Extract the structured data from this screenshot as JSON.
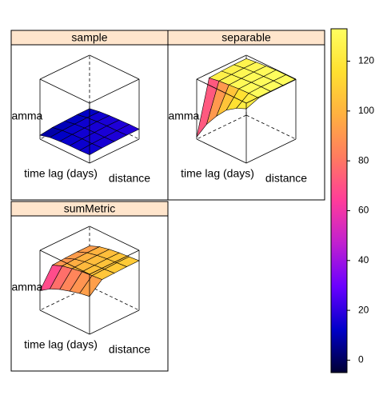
{
  "chart_data": {
    "type": "wireframe",
    "x_label": "distance",
    "y_label": "time lag (days)",
    "z_label": "gamma",
    "zlim": [
      -5,
      133
    ],
    "colorkey_ticks": [
      0,
      20,
      40,
      60,
      80,
      100,
      120
    ],
    "palette": [
      "#000033",
      "#0000c8",
      "#6a00ff",
      "#c020d0",
      "#ff3c9a",
      "#ff7a60",
      "#ffb040",
      "#ffe030",
      "#ffff60"
    ],
    "panels": [
      {
        "name": "sample",
        "z": [
          [
            4,
            10,
            12,
            13,
            13,
            14
          ],
          [
            8,
            12,
            14,
            15,
            15,
            16
          ],
          [
            9,
            13,
            15,
            16,
            16,
            17
          ],
          [
            10,
            14,
            16,
            17,
            17,
            18
          ],
          [
            10,
            14,
            16,
            17,
            18,
            18
          ]
        ]
      },
      {
        "name": "separable",
        "z": [
          [
            0,
            40,
            70,
            95,
            110,
            120
          ],
          [
            122,
            126,
            128,
            130,
            131,
            131
          ],
          [
            124,
            127,
            129,
            131,
            132,
            132
          ],
          [
            125,
            128,
            130,
            131,
            132,
            132
          ],
          [
            125,
            128,
            130,
            132,
            132,
            132
          ]
        ]
      },
      {
        "name": "sumMetric",
        "z": [
          [
            40,
            55,
            65,
            72,
            78,
            82
          ],
          [
            85,
            94,
            99,
            103,
            105,
            107
          ],
          [
            87,
            96,
            101,
            104,
            106,
            108
          ],
          [
            88,
            97,
            102,
            105,
            107,
            109
          ],
          [
            88,
            97,
            102,
            105,
            107,
            109
          ]
        ]
      }
    ]
  }
}
